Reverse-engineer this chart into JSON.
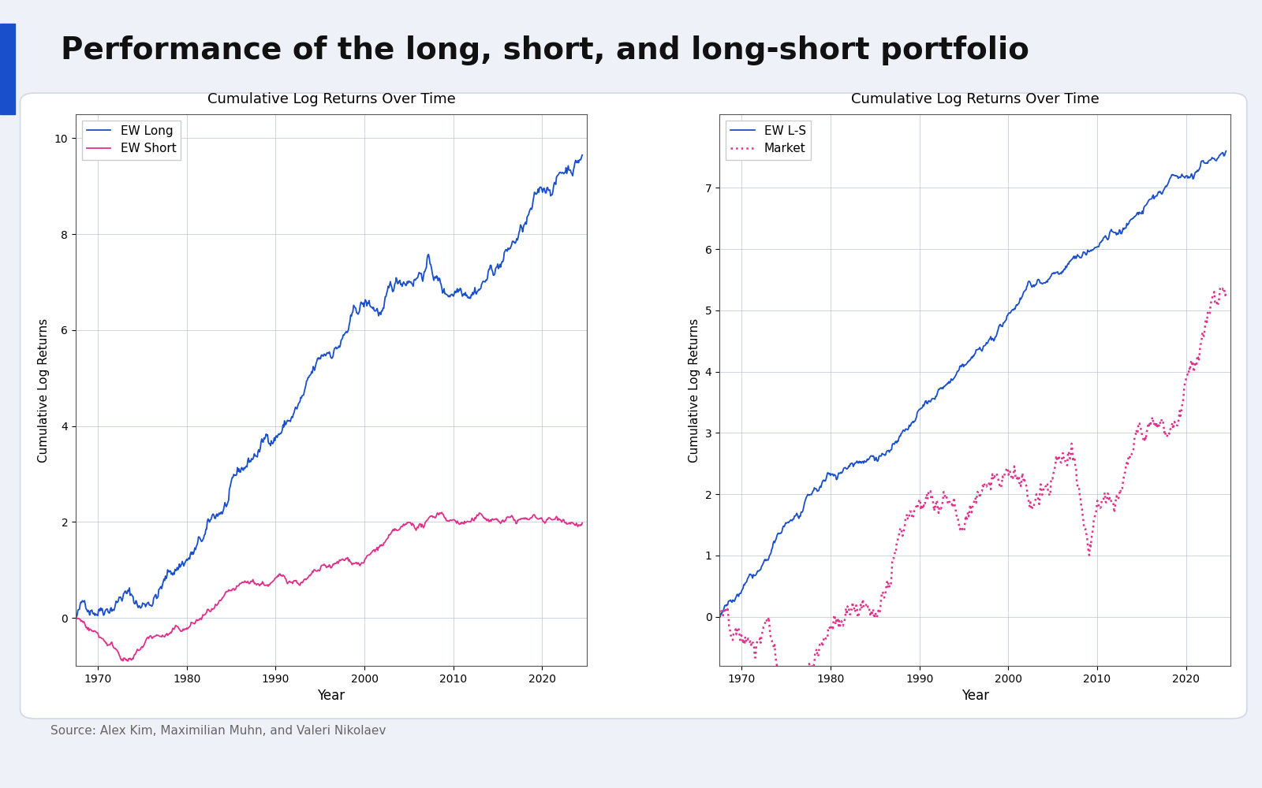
{
  "title": "Performance of the long, short, and long-short portfolio",
  "title_fontsize": 28,
  "title_fontweight": "bold",
  "source_text": "Source: Alex Kim, Maximilian Muhn, and Valeri Nikolaev",
  "background_color": "#eef2f8",
  "panel_bg": "#ffffff",
  "blue_bar_color": "#1a4fcc",
  "left_chart": {
    "title": "Cumulative Log Returns Over Time",
    "xlabel": "Year",
    "ylabel": "Cumulative Log Returns",
    "ylim": [
      -1.0,
      10.5
    ],
    "xlim": [
      1967.5,
      2025
    ],
    "yticks": [
      0,
      2,
      4,
      6,
      8,
      10
    ],
    "xticks": [
      1970,
      1980,
      1990,
      2000,
      2010,
      2020
    ],
    "series": [
      {
        "label": "EW Long",
        "color": "#1a4fcc",
        "linestyle": "-",
        "linewidth": 1.3
      },
      {
        "label": "EW Short",
        "color": "#e0328c",
        "linestyle": "-",
        "linewidth": 1.3
      }
    ]
  },
  "right_chart": {
    "title": "Cumulative Log Returns Over Time",
    "xlabel": "Year",
    "ylabel": "Cumulative Log Returns",
    "ylim": [
      -0.8,
      8.2
    ],
    "xlim": [
      1967.5,
      2025
    ],
    "yticks": [
      0,
      1,
      2,
      3,
      4,
      5,
      6,
      7
    ],
    "xticks": [
      1970,
      1980,
      1990,
      2000,
      2010,
      2020
    ],
    "series": [
      {
        "label": "EW L-S",
        "color": "#1a4fcc",
        "linestyle": "-",
        "linewidth": 1.3
      },
      {
        "label": "Market",
        "color": "#e0328c",
        "linestyle": ":",
        "linewidth": 1.8
      }
    ]
  },
  "seed": 42
}
